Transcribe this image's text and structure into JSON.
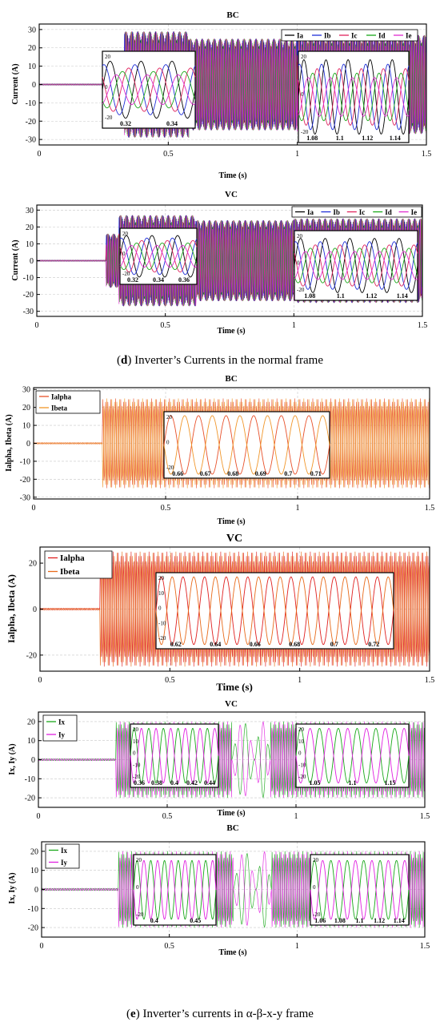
{
  "captions": {
    "d_letter": "d",
    "d_text": "Inverter’s Currents in the normal frame",
    "e_letter": "e",
    "e_text": "Inverter’s currents in α-β-x-y frame"
  },
  "chart_data": [
    {
      "id": "p1",
      "type": "line",
      "title": "BC",
      "xlabel": "Time (s)",
      "ylabel": "Current (A)",
      "xlim": [
        0,
        1.5
      ],
      "ylim": [
        -33,
        33
      ],
      "grid": true,
      "xticks": [
        0,
        0.5,
        1,
        1.5
      ],
      "xtick_labels": [
        "0",
        "0.5",
        "1",
        "1.5"
      ],
      "yticks": [
        -30,
        -20,
        -10,
        0,
        10,
        20,
        30
      ],
      "ytick_labels": [
        "-30",
        "-20",
        "-10",
        "0",
        "10",
        "20",
        "30"
      ],
      "series": [
        {
          "name": "Ia",
          "color": "#000000"
        },
        {
          "name": "Ib",
          "color": "#1f2fd8"
        },
        {
          "name": "Ic",
          "color": "#e0245e"
        },
        {
          "name": "Id",
          "color": "#1aa81a"
        },
        {
          "name": "Ie",
          "color": "#e02bd0"
        }
      ],
      "legend": "top-right",
      "segments": [
        {
          "t0": 0,
          "t1": 0.26,
          "amp": 0.3
        },
        {
          "t0": 0.26,
          "t1": 0.33,
          "amp": 16
        },
        {
          "t0": 0.33,
          "t1": 0.58,
          "amp": 29
        },
        {
          "t0": 0.58,
          "t1": 1.0,
          "amp": 25
        },
        {
          "t0": 1.0,
          "t1": 1.5,
          "amp": 27
        }
      ],
      "insets": [
        {
          "xlim": [
            0.31,
            0.36
          ],
          "ylim": [
            -27,
            27
          ],
          "amp": 20,
          "cycles": 3,
          "series": [
            "Ia",
            "Ib",
            "Ic",
            "Id",
            "Ie"
          ],
          "xtick_labels": [
            "0.32",
            "0.34"
          ],
          "ytick_labels": [
            "20",
            "0",
            "-20"
          ]
        },
        {
          "xlim": [
            1.06,
            1.16
          ],
          "ylim": [
            -27,
            27
          ],
          "amp": 22,
          "cycles": 5,
          "series": [
            "Ia",
            "Ib",
            "Ic",
            "Id",
            "Ie"
          ],
          "xtick_labels": [
            "1.08",
            "1.1",
            "1.12",
            "1.14"
          ],
          "ytick_labels": [
            "20",
            "0",
            "-20"
          ]
        }
      ]
    },
    {
      "id": "p2",
      "type": "line",
      "title": "VC",
      "xlabel": "Time (s)",
      "ylabel": "Current (A)",
      "xlim": [
        0,
        1.5
      ],
      "ylim": [
        -33,
        33
      ],
      "grid": true,
      "xticks": [
        0,
        0.5,
        1,
        1.5
      ],
      "xtick_labels": [
        "0",
        "0.5",
        "1",
        "1.5"
      ],
      "yticks": [
        -30,
        -20,
        -10,
        0,
        10,
        20,
        30
      ],
      "ytick_labels": [
        "-30",
        "-20",
        "-10",
        "0",
        "10",
        "20",
        "30"
      ],
      "series": [
        {
          "name": "Ia",
          "color": "#000000"
        },
        {
          "name": "Ib",
          "color": "#1f2fd8"
        },
        {
          "name": "Ic",
          "color": "#e0245e"
        },
        {
          "name": "Id",
          "color": "#1aa81a"
        },
        {
          "name": "Ie",
          "color": "#e02bd0"
        }
      ],
      "legend": "top-right",
      "segments": [
        {
          "t0": 0,
          "t1": 0.27,
          "amp": 0.3
        },
        {
          "t0": 0.27,
          "t1": 0.32,
          "amp": 16
        },
        {
          "t0": 0.32,
          "t1": 0.62,
          "amp": 27
        },
        {
          "t0": 0.62,
          "t1": 1.0,
          "amp": 24
        },
        {
          "t0": 1.0,
          "t1": 1.5,
          "amp": 25
        }
      ],
      "insets": [
        {
          "xlim": [
            0.31,
            0.37
          ],
          "ylim": [
            -27,
            27
          ],
          "amp": 20,
          "cycles": 3,
          "series": [
            "Ia",
            "Ib",
            "Ic",
            "Id",
            "Ie"
          ],
          "xtick_labels": [
            "0.32",
            "0.34",
            "0.36"
          ],
          "ytick_labels": [
            "20",
            "0",
            "-20"
          ]
        },
        {
          "xlim": [
            1.07,
            1.15
          ],
          "ylim": [
            -27,
            27
          ],
          "amp": 21,
          "cycles": 5,
          "series": [
            "Ia",
            "Ib",
            "Ic",
            "Id",
            "Ie"
          ],
          "xtick_labels": [
            "1.08",
            "1.1",
            "1.12",
            "1.14"
          ],
          "ytick_labels": [
            "20",
            "0",
            "-20"
          ]
        }
      ]
    },
    {
      "id": "p3",
      "type": "line",
      "title": "BC",
      "xlabel": "Time (s)",
      "ylabel": "Ialpha, Ibeta (A)",
      "xlim": [
        0,
        1.5
      ],
      "ylim": [
        -31,
        31
      ],
      "grid": true,
      "xticks": [
        0,
        0.5,
        1,
        1.5
      ],
      "xtick_labels": [
        "0",
        "0.5",
        "1",
        "1.5"
      ],
      "yticks": [
        -30,
        -20,
        -10,
        0,
        10,
        20,
        30
      ],
      "ytick_labels": [
        "-30",
        "-20",
        "-10",
        "0",
        "10",
        "20",
        "30"
      ],
      "series": [
        {
          "name": "Ialpha",
          "color": "#e8502a"
        },
        {
          "name": "Ibeta",
          "color": "#f0962a"
        }
      ],
      "legend": "top-left",
      "segments": [
        {
          "t0": 0,
          "t1": 0.26,
          "amp": 0.4
        },
        {
          "t0": 0.26,
          "t1": 1.5,
          "amp": 25
        }
      ],
      "insets": [
        {
          "xlim": [
            0.655,
            0.715
          ],
          "ylim": [
            -25,
            25
          ],
          "amp": 22,
          "cycles": 6,
          "series": [
            "Ialpha",
            "Ibeta"
          ],
          "xtick_labels": [
            "0.66",
            "0.67",
            "0.68",
            "0.69",
            "0.7",
            "0.71"
          ],
          "ytick_labels": [
            "20",
            "0",
            "-20"
          ]
        }
      ]
    },
    {
      "id": "p4",
      "type": "line",
      "title": "VC",
      "xlabel": "Time (s)",
      "ylabel": "Ialpha, Ibeta (A)",
      "xlim": [
        0,
        1.5
      ],
      "ylim": [
        -27,
        27
      ],
      "grid": true,
      "xticks": [
        0,
        0.5,
        1,
        1.5
      ],
      "xtick_labels": [
        "0",
        "0.5",
        "1",
        "1.5"
      ],
      "yticks": [
        -20,
        0,
        20
      ],
      "ytick_labels": [
        "-20",
        "0",
        "20"
      ],
      "series": [
        {
          "name": "Ialpha",
          "color": "#e02020"
        },
        {
          "name": "Ibeta",
          "color": "#e86a1a"
        }
      ],
      "legend": "top-left",
      "segments": [
        {
          "t0": 0,
          "t1": 0.23,
          "amp": 0.4
        },
        {
          "t0": 0.23,
          "t1": 1.5,
          "amp": 25
        }
      ],
      "insets": [
        {
          "xlim": [
            0.615,
            0.725
          ],
          "ylim": [
            -27,
            27
          ],
          "amp": 24,
          "cycles": 11,
          "series": [
            "Ialpha",
            "Ibeta"
          ],
          "xtick_labels": [
            "0.62",
            "0.64",
            "0.66",
            "0.68",
            "0.7",
            "0.72"
          ],
          "ytick_labels": [
            "20",
            "10",
            "0",
            "-10",
            "-20"
          ]
        }
      ]
    },
    {
      "id": "p5",
      "type": "line",
      "title": "VC",
      "xlabel": "Time (s)",
      "ylabel": "Ix, Iy (A)",
      "xlim": [
        0,
        1.5
      ],
      "ylim": [
        -25,
        25
      ],
      "grid": true,
      "xticks": [
        0,
        0.5,
        1,
        1.5
      ],
      "xtick_labels": [
        "0",
        "0.5",
        "1",
        "1.5"
      ],
      "yticks": [
        -20,
        -10,
        0,
        10,
        20
      ],
      "ytick_labels": [
        "-20",
        "-10",
        "0",
        "10",
        "20"
      ],
      "series": [
        {
          "name": "Ix",
          "color": "#1aa81a"
        },
        {
          "name": "Iy",
          "color": "#e020e0"
        }
      ],
      "legend": "top-left",
      "segments": [
        {
          "t0": 0,
          "t1": 0.3,
          "amp": 0.5
        },
        {
          "t0": 0.3,
          "t1": 0.75,
          "amp": 20
        },
        {
          "t0": 0.75,
          "t1": 0.84,
          "amp": 20,
          "slow": true
        },
        {
          "t0": 0.84,
          "t1": 0.9,
          "amp": 20,
          "slow": true
        },
        {
          "t0": 0.9,
          "t1": 1.5,
          "amp": 20
        }
      ],
      "insets": [
        {
          "xlim": [
            0.355,
            0.445
          ],
          "ylim": [
            -22,
            22
          ],
          "amp": 19,
          "cycles": 6,
          "series": [
            "Ix",
            "Iy"
          ],
          "xtick_labels": [
            "0.36",
            "0.38",
            "0.4",
            "0.42",
            "0.44"
          ],
          "ytick_labels": [
            "20",
            "10",
            "0",
            "-10",
            "-20"
          ]
        },
        {
          "xlim": [
            1.05,
            1.2
          ],
          "ylim": [
            -22,
            22
          ],
          "amp": 19,
          "cycles": 6,
          "series": [
            "Ix",
            "Iy"
          ],
          "xtick_labels": [
            "1.05",
            "1.1",
            "1.15"
          ],
          "ytick_labels": [
            "20",
            "10",
            "0",
            "-10",
            "-20"
          ]
        }
      ]
    },
    {
      "id": "p6",
      "type": "line",
      "title": "BC",
      "xlabel": "Time (s)",
      "ylabel": "Ix, Iy (A)",
      "xlim": [
        0,
        1.5
      ],
      "ylim": [
        -25,
        25
      ],
      "grid": true,
      "xticks": [
        0,
        0.5,
        1,
        1.5
      ],
      "xtick_labels": [
        "0",
        "0.5",
        "1",
        "1.5"
      ],
      "yticks": [
        -20,
        -10,
        0,
        10,
        20
      ],
      "ytick_labels": [
        "-20",
        "-10",
        "0",
        "10",
        "20"
      ],
      "series": [
        {
          "name": "Ix",
          "color": "#1aa81a"
        },
        {
          "name": "Iy",
          "color": "#e020e0"
        }
      ],
      "legend": "top-left",
      "segments": [
        {
          "t0": 0,
          "t1": 0.3,
          "amp": 0.6
        },
        {
          "t0": 0.3,
          "t1": 0.75,
          "amp": 20
        },
        {
          "t0": 0.75,
          "t1": 0.84,
          "amp": 20,
          "slow": true
        },
        {
          "t0": 0.84,
          "t1": 0.9,
          "amp": 20,
          "slow": true
        },
        {
          "t0": 0.9,
          "t1": 1.5,
          "amp": 20
        }
      ],
      "insets": [
        {
          "xlim": [
            0.39,
            0.46
          ],
          "ylim": [
            -24,
            24
          ],
          "amp": 20,
          "cycles": 6,
          "series": [
            "Ix",
            "Iy"
          ],
          "xtick_labels": [
            "0.4",
            "0.45"
          ],
          "ytick_labels": [
            "20",
            "0",
            "-20"
          ]
        },
        {
          "xlim": [
            1.055,
            1.145
          ],
          "ylim": [
            -24,
            24
          ],
          "amp": 20,
          "cycles": 6,
          "series": [
            "Ix",
            "Iy"
          ],
          "xtick_labels": [
            "1.06",
            "1.08",
            "1.1",
            "1.12",
            "1.14"
          ],
          "ytick_labels": [
            "20",
            "0",
            "-20"
          ]
        }
      ]
    }
  ]
}
